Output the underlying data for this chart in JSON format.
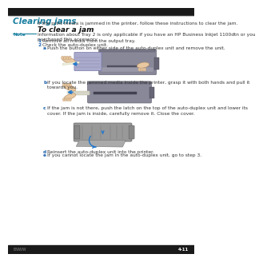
{
  "bg_color": "#ffffff",
  "top_bar_color": "#1a1a1a",
  "bottom_bar_color": "#1a1a1a",
  "title": "Clearing jams",
  "title_color": "#1a7fa0",
  "title_fontsize": 7.5,
  "intro_text": "If the print media is jammed in the printer, follow these instructions to clear the jam.",
  "section_title": "To clear a jam",
  "section_title_fontsize": 6.5,
  "note_label": "Note",
  "note_label_color": "#1a7fa0",
  "note_line_color": "#1a7fa0",
  "note_text": "Information about Tray 2 is only applicable if you have an HP Business Inkjet 1100dtn or you\npurchased this accessory.",
  "step1_num": "1",
  "step1": "Remove all media from the output tray.",
  "step2_num": "2",
  "step2": "Check the auto-duplex unit.",
  "step2a_label": "a",
  "step2a": "Push the button on either side of the auto-duplex unit and remove the unit.",
  "step2b_label": "b",
  "step2b": "If you locate the jammed media inside the printer, grasp it with both hands and pull it\ntowards you.",
  "step2c_label": "c",
  "step2c": "If the jam is not there, push the latch on the top of the auto-duplex unit and lower its\ncover. If the jam is inside, carefully remove it. Close the cover.",
  "step2d_label": "d",
  "step2d": "Reinsert the auto-duplex unit into the printer.",
  "step2e_label": "e",
  "step2e": "If you cannot locate the jam in the auto-duplex unit, go to step 3.",
  "page_num": "4-11",
  "footer_label": "ENWW",
  "text_color": "#333333",
  "num_color": "#1a5faa",
  "body_fontsize": 4.2,
  "label_fontsize": 4.2,
  "note_fontsize": 4.2,
  "printer_body_color": "#888888",
  "printer_dark_color": "#555555",
  "printer_light_color": "#aaaaaa",
  "arrow_color": "#2277cc",
  "hand_color": "#e8c8a0",
  "paper_color": "#f0eedc"
}
